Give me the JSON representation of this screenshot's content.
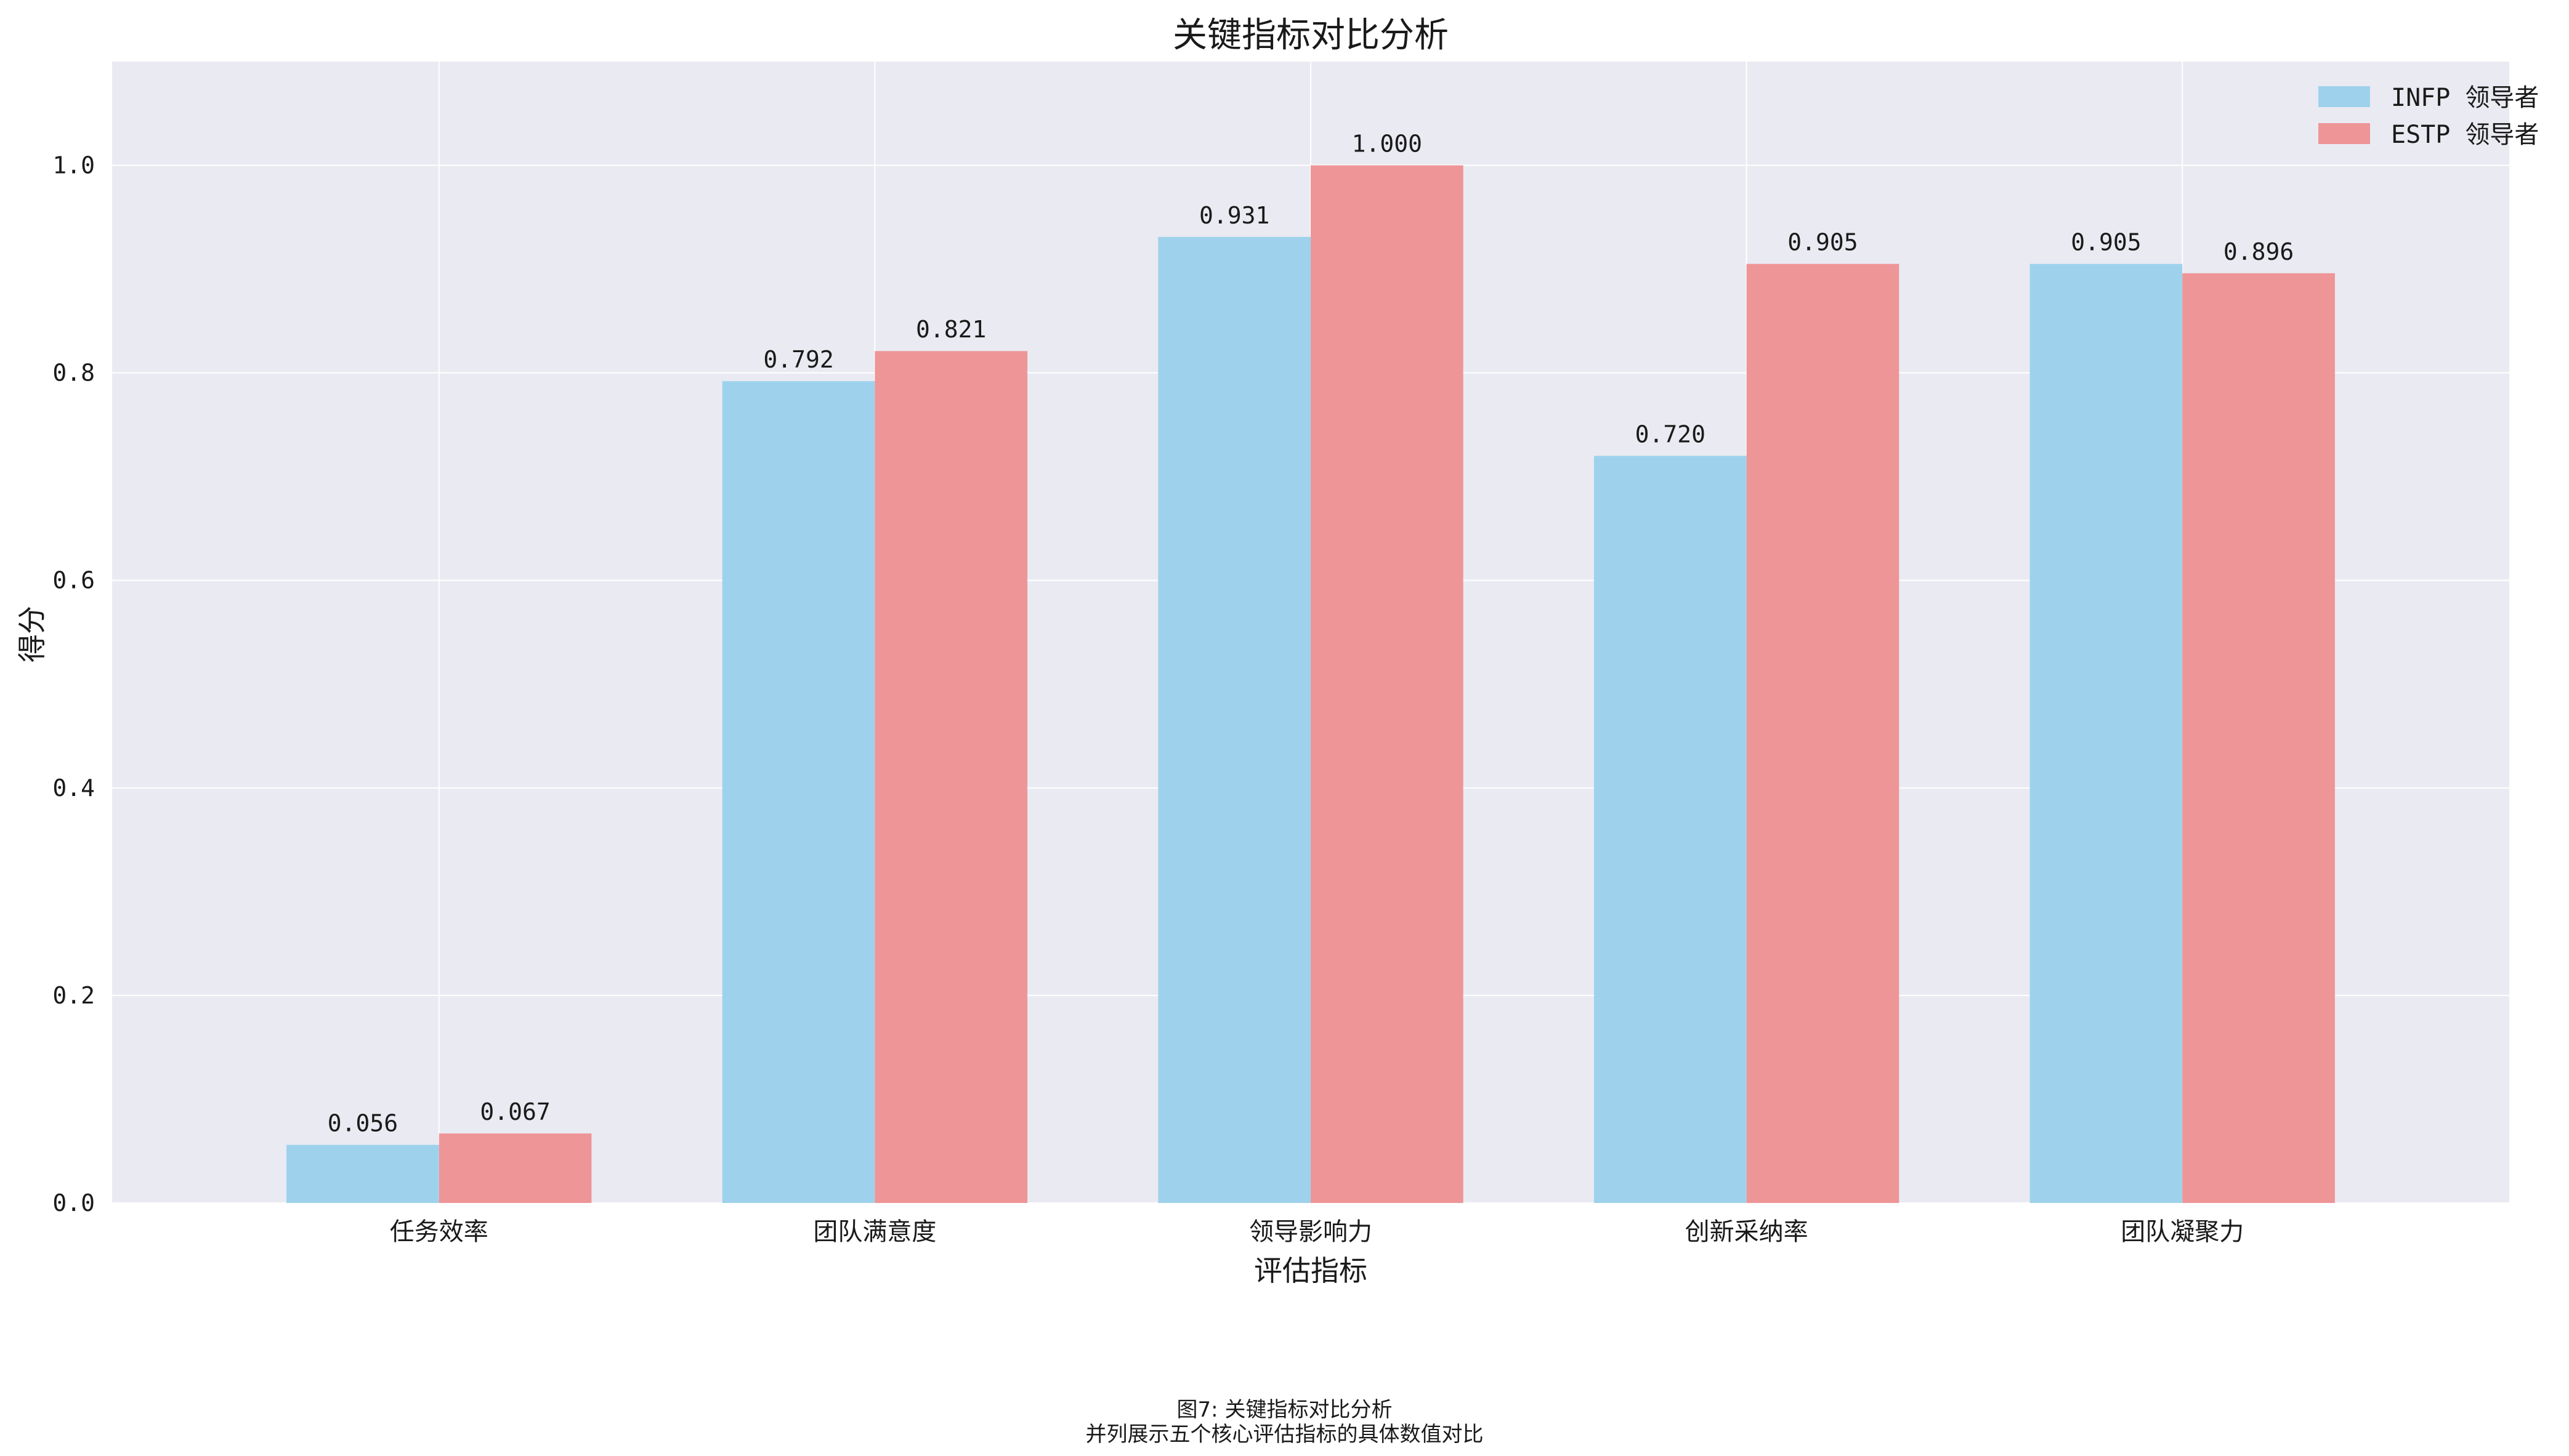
{
  "chart_data": {
    "type": "bar",
    "title": "关键指标对比分析",
    "xlabel": "评估指标",
    "ylabel": "得分",
    "categories": [
      "任务效率",
      "团队满意度",
      "领导影响力",
      "创新采纳率",
      "团队凝聚力"
    ],
    "series": [
      {
        "name": "INFP 领导者",
        "color": "#9ed2ec",
        "values": [
          0.056,
          0.792,
          0.931,
          0.72,
          0.905
        ],
        "labels": [
          "0.056",
          "0.792",
          "0.931",
          "0.720",
          "0.905"
        ]
      },
      {
        "name": "ESTP 领导者",
        "color": "#ee9598",
        "values": [
          0.067,
          0.821,
          1.0,
          0.905,
          0.896
        ],
        "labels": [
          "0.067",
          "0.821",
          "1.000",
          "0.905",
          "0.896"
        ]
      }
    ],
    "ylim": [
      0,
      1.1
    ],
    "yticks": [
      "0.0",
      "0.2",
      "0.4",
      "0.6",
      "0.8",
      "1.0"
    ],
    "grid": true,
    "legend_position": "top-right",
    "plot_background": "#eaeaf2"
  },
  "caption": {
    "line1": "图7: 关键指标对比分析",
    "line2": "并列展示五个核心评估指标的具体数值对比"
  }
}
